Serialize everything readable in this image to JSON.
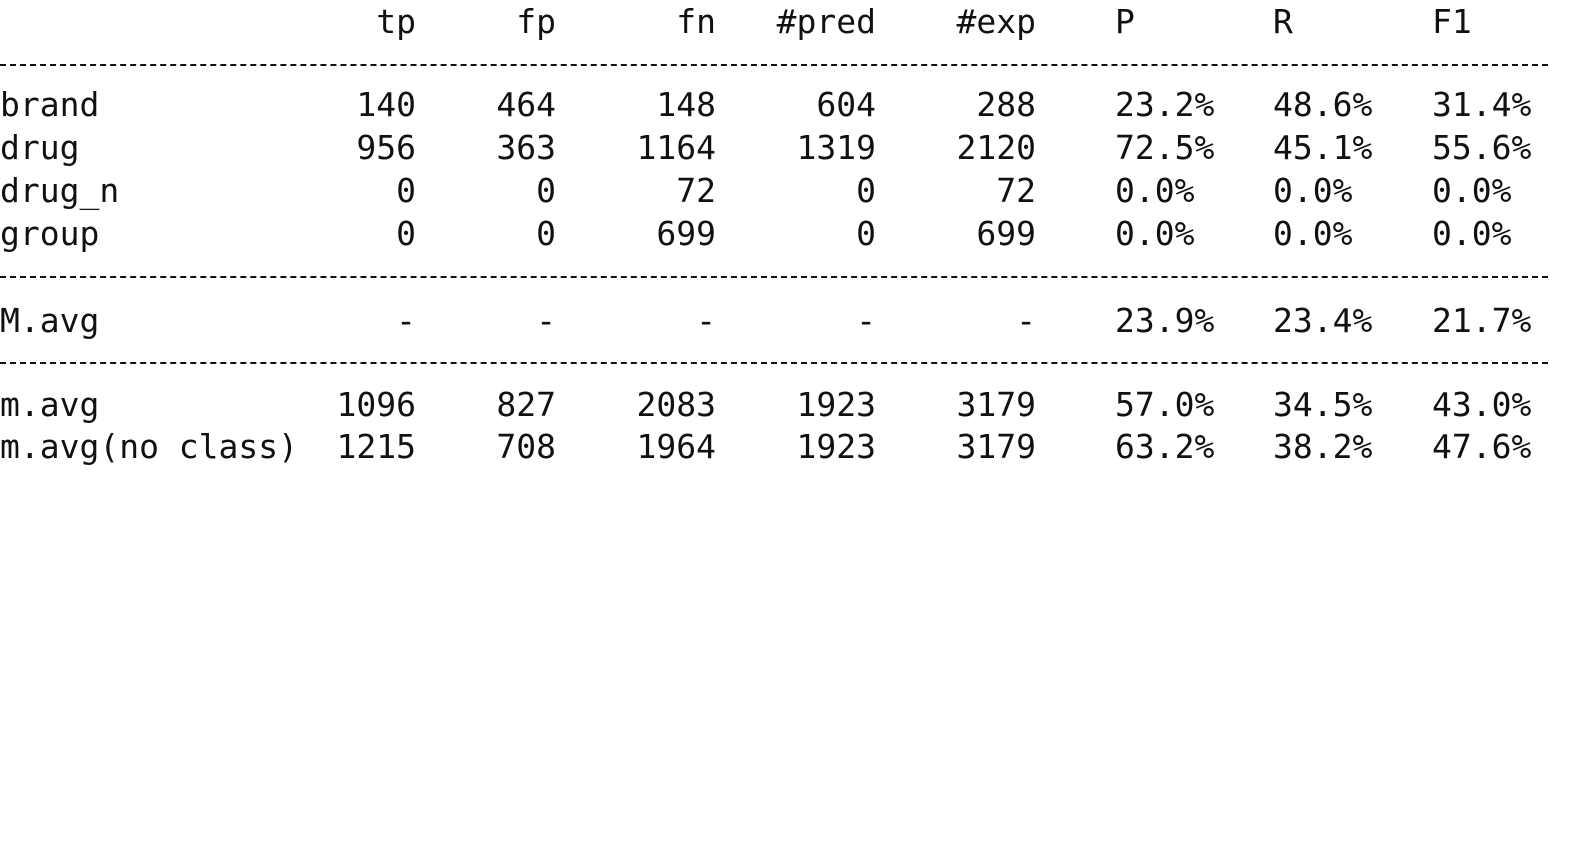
{
  "header": {
    "tp": "tp",
    "fp": "fp",
    "fn": "fn",
    "pred": "#pred",
    "exp": "#exp",
    "p": "P",
    "r": "R",
    "f1": "F1"
  },
  "rows": [
    {
      "label": "brand",
      "tp": "140",
      "fp": "464",
      "fn": "148",
      "pred": "604",
      "exp": "288",
      "p": "23.2%",
      "r": "48.6%",
      "f1": "31.4%"
    },
    {
      "label": "drug",
      "tp": "956",
      "fp": "363",
      "fn": "1164",
      "pred": "1319",
      "exp": "2120",
      "p": "72.5%",
      "r": "45.1%",
      "f1": "55.6%"
    },
    {
      "label": "drug_n",
      "tp": "0",
      "fp": "0",
      "fn": "72",
      "pred": "0",
      "exp": "72",
      "p": "0.0%",
      "r": "0.0%",
      "f1": "0.0%"
    },
    {
      "label": "group",
      "tp": "0",
      "fp": "0",
      "fn": "699",
      "pred": "0",
      "exp": "699",
      "p": "0.0%",
      "r": "0.0%",
      "f1": "0.0%"
    }
  ],
  "macro": {
    "label": "M.avg",
    "tp": "-",
    "fp": "-",
    "fn": "-",
    "pred": "-",
    "exp": "-",
    "p": "23.9%",
    "r": "23.4%",
    "f1": "21.7%"
  },
  "micro": [
    {
      "label": "m.avg",
      "tp": "1096",
      "fp": "827",
      "fn": "2083",
      "pred": "1923",
      "exp": "3179",
      "p": "57.0%",
      "r": "34.5%",
      "f1": "43.0%"
    },
    {
      "label": "m.avg(no class)",
      "tp": "1215",
      "fp": "708",
      "fn": "1964",
      "pred": "1923",
      "exp": "3179",
      "p": "63.2%",
      "r": "38.2%",
      "f1": "47.6%"
    }
  ]
}
